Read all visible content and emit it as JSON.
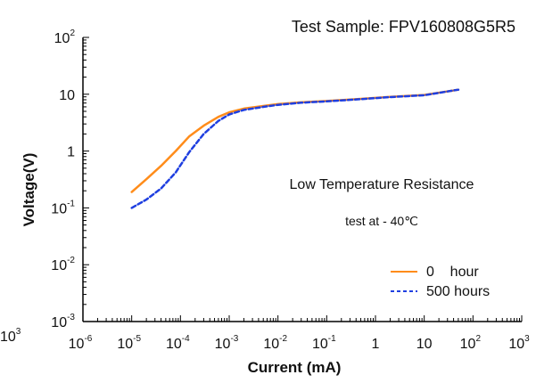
{
  "chart_data": {
    "type": "line",
    "title": "Test    Sample: FPV160808G5R5",
    "xlabel": "Current (mA)",
    "ylabel": "Voltage(V)",
    "x_scale": "log",
    "y_scale": "log",
    "xlim": [
      1e-06,
      1000
    ],
    "ylim": [
      0.001,
      100
    ],
    "grid": false,
    "legend_position": "bottom-right",
    "x_ticks": [
      {
        "value": 1e-06,
        "base": "10",
        "exp": "-6"
      },
      {
        "value": 1e-05,
        "base": "10",
        "exp": "-5"
      },
      {
        "value": 0.0001,
        "base": "10",
        "exp": "-4"
      },
      {
        "value": 0.001,
        "base": "10",
        "exp": "-3"
      },
      {
        "value": 0.01,
        "base": "10",
        "exp": "-2"
      },
      {
        "value": 0.1,
        "base": "10",
        "exp": "-1"
      },
      {
        "value": 1,
        "base": "1",
        "exp": ""
      },
      {
        "value": 10,
        "base": "10",
        "exp": ""
      },
      {
        "value": 100,
        "base": "10",
        "exp": "2"
      },
      {
        "value": 1000,
        "base": "10",
        "exp": "3"
      }
    ],
    "y_ticks": [
      {
        "value": 100,
        "base": "10",
        "exp": "2"
      },
      {
        "value": 10,
        "base": "10",
        "exp": ""
      },
      {
        "value": 1,
        "base": "1",
        "exp": ""
      },
      {
        "value": 0.1,
        "base": "10",
        "exp": "-1"
      },
      {
        "value": 0.01,
        "base": "10",
        "exp": "-2"
      },
      {
        "value": 0.001,
        "base": "10",
        "exp": "-3"
      }
    ],
    "annotations": {
      "line1": "Low Temperature Resistance",
      "line2": "test at  - 40℃"
    },
    "series": [
      {
        "name": "0    hour",
        "color": "#ff8c1a",
        "dash": "solid",
        "points": [
          [
            1e-05,
            0.19
          ],
          [
            2e-05,
            0.32
          ],
          [
            4e-05,
            0.55
          ],
          [
            8e-05,
            1.0
          ],
          [
            0.00015,
            1.8
          ],
          [
            0.0003,
            2.8
          ],
          [
            0.0006,
            4.0
          ],
          [
            0.001,
            4.8
          ],
          [
            0.002,
            5.6
          ],
          [
            0.005,
            6.2
          ],
          [
            0.01,
            6.7
          ],
          [
            0.03,
            7.2
          ],
          [
            0.1,
            7.6
          ],
          [
            0.5,
            8.3
          ],
          [
            2,
            9.0
          ],
          [
            10,
            9.7
          ],
          [
            50,
            12.0
          ]
        ]
      },
      {
        "name": "500 hours",
        "color": "#1f3fe0",
        "dash": "dashed",
        "points": [
          [
            1e-05,
            0.1
          ],
          [
            2e-05,
            0.14
          ],
          [
            4e-05,
            0.22
          ],
          [
            8e-05,
            0.42
          ],
          [
            0.00015,
            0.95
          ],
          [
            0.0003,
            2.0
          ],
          [
            0.0006,
            3.4
          ],
          [
            0.001,
            4.4
          ],
          [
            0.002,
            5.3
          ],
          [
            0.005,
            6.0
          ],
          [
            0.01,
            6.5
          ],
          [
            0.03,
            7.1
          ],
          [
            0.1,
            7.5
          ],
          [
            0.5,
            8.2
          ],
          [
            2,
            8.9
          ],
          [
            10,
            9.6
          ],
          [
            50,
            12.0
          ]
        ]
      }
    ],
    "edge_fragments": {
      "left_bottom": "10",
      "left_bottom_exp": "3"
    }
  }
}
